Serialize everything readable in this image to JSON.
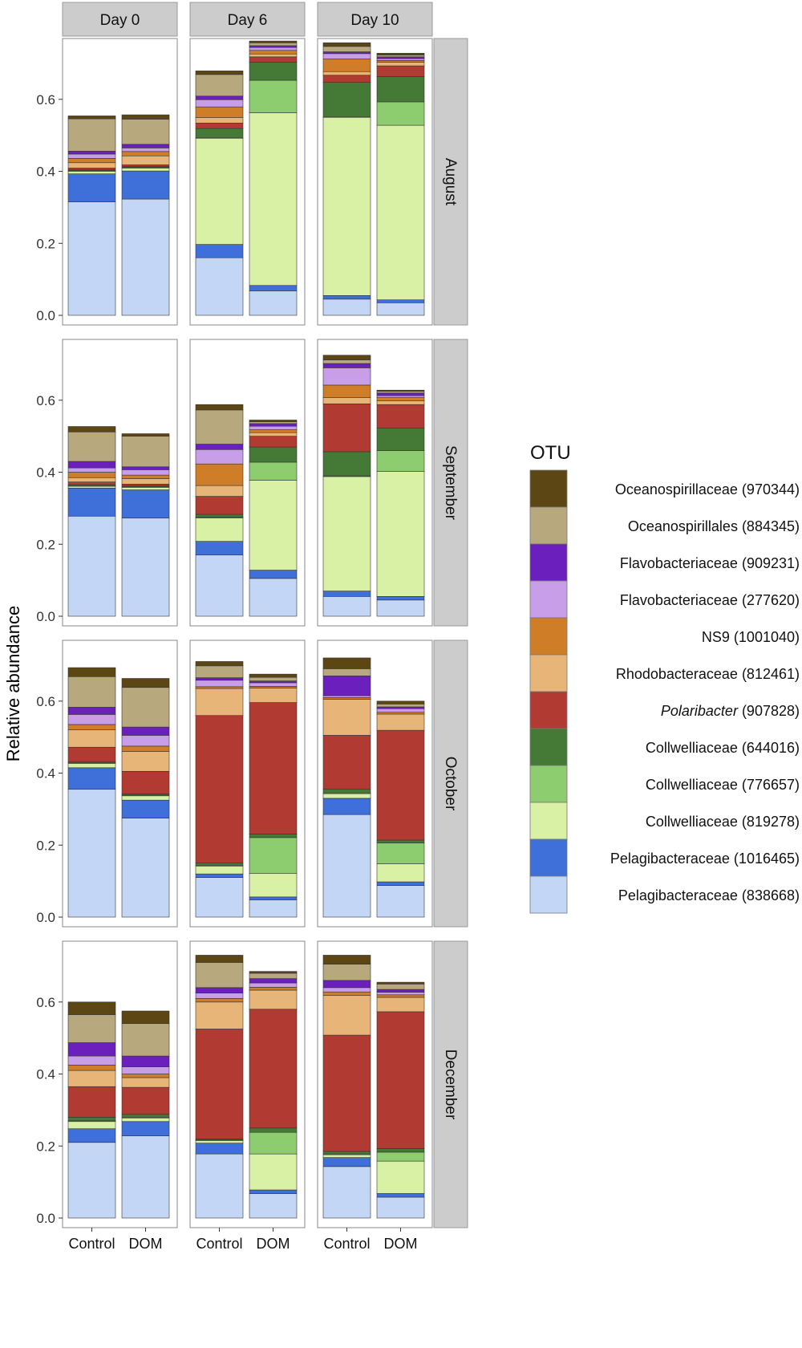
{
  "chart_data": {
    "type": "bar",
    "stacked": true,
    "ylabel": "Relative abundance",
    "yticks": [
      "0.0",
      "0.2",
      "0.4",
      "0.6"
    ],
    "ytick_values": [
      0,
      0.2,
      0.4,
      0.6
    ],
    "ylim": [
      0,
      0.76
    ],
    "columns": [
      "Day 0",
      "Day 6",
      "Day 10"
    ],
    "rows": [
      "August",
      "September",
      "October",
      "December"
    ],
    "categories": [
      "Control",
      "DOM"
    ],
    "legend_title": "OTU",
    "legend_position": "right",
    "series": [
      {
        "name": "Pelagibacteraceae (838668)",
        "color": "#c4d6f6"
      },
      {
        "name": "Pelagibacteraceae (1016465)",
        "color": "#3f6fd8"
      },
      {
        "name": "Collwelliaceae (819278)",
        "color": "#d9f1a5"
      },
      {
        "name": "Collwelliaceae (776657)",
        "color": "#8dcd6f"
      },
      {
        "name": "Collwelliaceae (644016)",
        "color": "#447a36"
      },
      {
        "name": "Polaribacter (907828)",
        "color": "#b13a32",
        "italic": "Polaribacter",
        "suffix": " (907828)"
      },
      {
        "name": "Rhodobacteraceae (812461)",
        "color": "#e8b579"
      },
      {
        "name": "NS9 (1001040)",
        "color": "#cf7d26"
      },
      {
        "name": "Flavobacteriaceae (277620)",
        "color": "#c89ee8"
      },
      {
        "name": "Flavobacteriaceae (909231)",
        "color": "#6b1fbc"
      },
      {
        "name": "Oceanospirillales (884345)",
        "color": "#b8a87e"
      },
      {
        "name": "Oceanospirillaceae (970344)",
        "color": "#5c4614"
      }
    ],
    "panels": [
      {
        "row": "August",
        "col": "Day 0",
        "bars": [
          {
            "category": "Control",
            "values": [
              0.315,
              0.078,
              0.007,
              0.002,
              0.002,
              0.005,
              0.015,
              0.012,
              0.012,
              0.008,
              0.09,
              0.008
            ]
          },
          {
            "category": "DOM",
            "values": [
              0.323,
              0.078,
              0.008,
              0.002,
              0.002,
              0.005,
              0.025,
              0.012,
              0.01,
              0.01,
              0.07,
              0.012
            ]
          }
        ]
      },
      {
        "row": "August",
        "col": "Day 6",
        "bars": [
          {
            "category": "Control",
            "values": [
              0.16,
              0.037,
              0.295,
              0.002,
              0.025,
              0.015,
              0.015,
              0.03,
              0.02,
              0.01,
              0.06,
              0.01
            ]
          },
          {
            "category": "DOM",
            "values": [
              0.068,
              0.015,
              0.48,
              0.09,
              0.05,
              0.015,
              0.008,
              0.01,
              0.008,
              0.005,
              0.008,
              0.005
            ]
          }
        ]
      },
      {
        "row": "August",
        "col": "Day 10",
        "bars": [
          {
            "category": "Control",
            "values": [
              0.045,
              0.01,
              0.495,
              0.002,
              0.095,
              0.02,
              0.01,
              0.035,
              0.015,
              0.005,
              0.015,
              0.01
            ]
          },
          {
            "category": "DOM",
            "values": [
              0.035,
              0.008,
              0.485,
              0.065,
              0.07,
              0.03,
              0.01,
              0.005,
              0.005,
              0.005,
              0.005,
              0.005
            ]
          }
        ]
      },
      {
        "row": "September",
        "col": "Day 0",
        "bars": [
          {
            "category": "Control",
            "values": [
              0.278,
              0.078,
              0.005,
              0.002,
              0.002,
              0.008,
              0.012,
              0.015,
              0.012,
              0.018,
              0.082,
              0.015
            ]
          },
          {
            "category": "DOM",
            "values": [
              0.273,
              0.078,
              0.007,
              0.002,
              0.002,
              0.005,
              0.015,
              0.01,
              0.015,
              0.008,
              0.085,
              0.007
            ]
          }
        ]
      },
      {
        "row": "September",
        "col": "Day 6",
        "bars": [
          {
            "category": "Control",
            "values": [
              0.17,
              0.038,
              0.065,
              0.002,
              0.008,
              0.05,
              0.03,
              0.06,
              0.04,
              0.015,
              0.095,
              0.015
            ]
          },
          {
            "category": "DOM",
            "values": [
              0.105,
              0.023,
              0.25,
              0.05,
              0.042,
              0.03,
              0.01,
              0.008,
              0.01,
              0.007,
              0.005,
              0.005
            ]
          }
        ]
      },
      {
        "row": "September",
        "col": "Day 10",
        "bars": [
          {
            "category": "Control",
            "values": [
              0.055,
              0.015,
              0.318,
              0.002,
              0.067,
              0.133,
              0.017,
              0.035,
              0.048,
              0.012,
              0.01,
              0.013
            ]
          },
          {
            "category": "DOM",
            "values": [
              0.045,
              0.01,
              0.347,
              0.058,
              0.063,
              0.065,
              0.01,
              0.01,
              0.005,
              0.007,
              0.005,
              0.003
            ]
          }
        ]
      },
      {
        "row": "October",
        "col": "Day 0",
        "bars": [
          {
            "category": "Control",
            "values": [
              0.355,
              0.06,
              0.012,
              0.002,
              0.003,
              0.04,
              0.048,
              0.015,
              0.028,
              0.02,
              0.085,
              0.025
            ]
          },
          {
            "category": "DOM",
            "values": [
              0.275,
              0.05,
              0.012,
              0.002,
              0.003,
              0.063,
              0.055,
              0.015,
              0.03,
              0.023,
              0.11,
              0.025
            ]
          }
        ]
      },
      {
        "row": "October",
        "col": "Day 6",
        "bars": [
          {
            "category": "Control",
            "values": [
              0.11,
              0.01,
              0.022,
              0.002,
              0.006,
              0.41,
              0.075,
              0.005,
              0.018,
              0.007,
              0.033,
              0.012
            ]
          },
          {
            "category": "DOM",
            "values": [
              0.048,
              0.008,
              0.065,
              0.1,
              0.01,
              0.365,
              0.04,
              0.005,
              0.01,
              0.005,
              0.01,
              0.009
            ]
          }
        ]
      },
      {
        "row": "October",
        "col": "Day 10",
        "bars": [
          {
            "category": "Control",
            "values": [
              0.285,
              0.045,
              0.013,
              0.002,
              0.01,
              0.15,
              0.1,
              0.005,
              0.005,
              0.055,
              0.02,
              0.03
            ]
          },
          {
            "category": "DOM",
            "values": [
              0.088,
              0.01,
              0.05,
              0.058,
              0.008,
              0.305,
              0.045,
              0.005,
              0.01,
              0.005,
              0.008,
              0.008
            ]
          }
        ]
      },
      {
        "row": "December",
        "col": "Day 0",
        "bars": [
          {
            "category": "Control",
            "values": [
              0.21,
              0.038,
              0.02,
              0.002,
              0.01,
              0.085,
              0.045,
              0.015,
              0.025,
              0.037,
              0.078,
              0.035
            ]
          },
          {
            "category": "DOM",
            "values": [
              0.228,
              0.04,
              0.01,
              0.002,
              0.008,
              0.075,
              0.027,
              0.01,
              0.02,
              0.03,
              0.09,
              0.035
            ]
          }
        ]
      },
      {
        "row": "December",
        "col": "Day 6",
        "bars": [
          {
            "category": "Control",
            "values": [
              0.178,
              0.03,
              0.007,
              0.002,
              0.003,
              0.305,
              0.075,
              0.01,
              0.015,
              0.015,
              0.07,
              0.02
            ]
          },
          {
            "category": "DOM",
            "values": [
              0.068,
              0.01,
              0.1,
              0.06,
              0.012,
              0.33,
              0.053,
              0.008,
              0.012,
              0.012,
              0.015,
              0.005
            ]
          }
        ]
      },
      {
        "row": "December",
        "col": "Day 10",
        "bars": [
          {
            "category": "Control",
            "values": [
              0.143,
              0.025,
              0.008,
              0.002,
              0.007,
              0.323,
              0.11,
              0.01,
              0.012,
              0.02,
              0.045,
              0.025
            ]
          },
          {
            "category": "DOM",
            "values": [
              0.058,
              0.01,
              0.09,
              0.025,
              0.01,
              0.38,
              0.04,
              0.007,
              0.007,
              0.008,
              0.015,
              0.005
            ]
          }
        ]
      }
    ]
  }
}
